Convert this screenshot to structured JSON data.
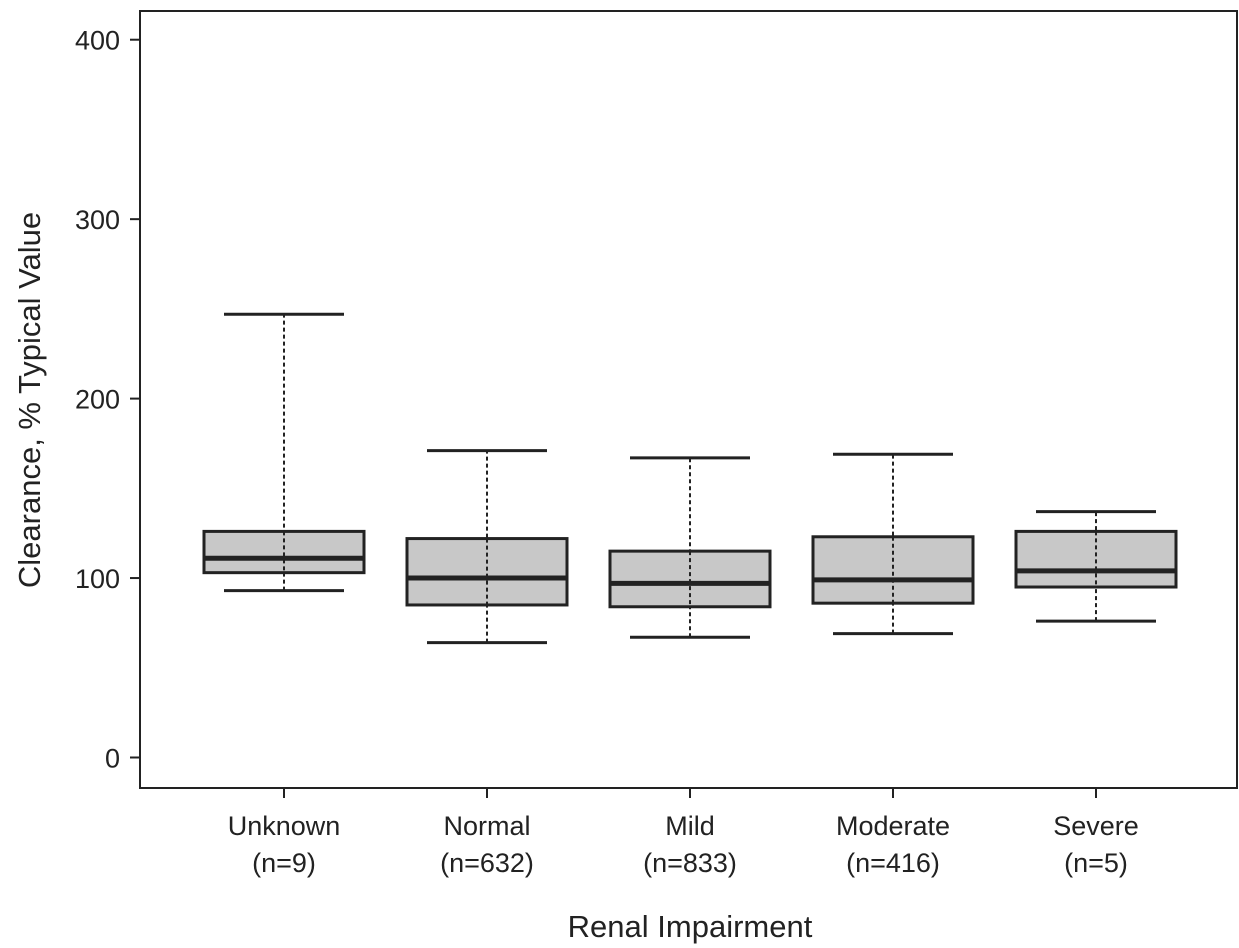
{
  "chart_data": {
    "type": "box",
    "title": "",
    "xlabel": "Renal Impairment",
    "ylabel": "Clearance, % Typical Value",
    "ylim": [
      -17,
      416
    ],
    "yticks": [
      0,
      100,
      200,
      300,
      400
    ],
    "grid": false,
    "legend": "none",
    "box_fill": "#c8c8c8",
    "line_color": "#222222",
    "categories": [
      {
        "name": "Unknown",
        "n_label": "(n=9)",
        "whisker_low": 93,
        "q1": 103,
        "median": 111,
        "q3": 126,
        "whisker_high": 247
      },
      {
        "name": "Normal",
        "n_label": "(n=632)",
        "whisker_low": 64,
        "q1": 85,
        "median": 100,
        "q3": 122,
        "whisker_high": 171
      },
      {
        "name": "Mild",
        "n_label": "(n=833)",
        "whisker_low": 67,
        "q1": 84,
        "median": 97,
        "q3": 115,
        "whisker_high": 167
      },
      {
        "name": "Moderate",
        "n_label": "(n=416)",
        "whisker_low": 69,
        "q1": 86,
        "median": 99,
        "q3": 123,
        "whisker_high": 169
      },
      {
        "name": "Severe",
        "n_label": "(n=5)",
        "whisker_low": 76,
        "q1": 95,
        "median": 104,
        "q3": 126,
        "whisker_high": 137
      }
    ]
  }
}
